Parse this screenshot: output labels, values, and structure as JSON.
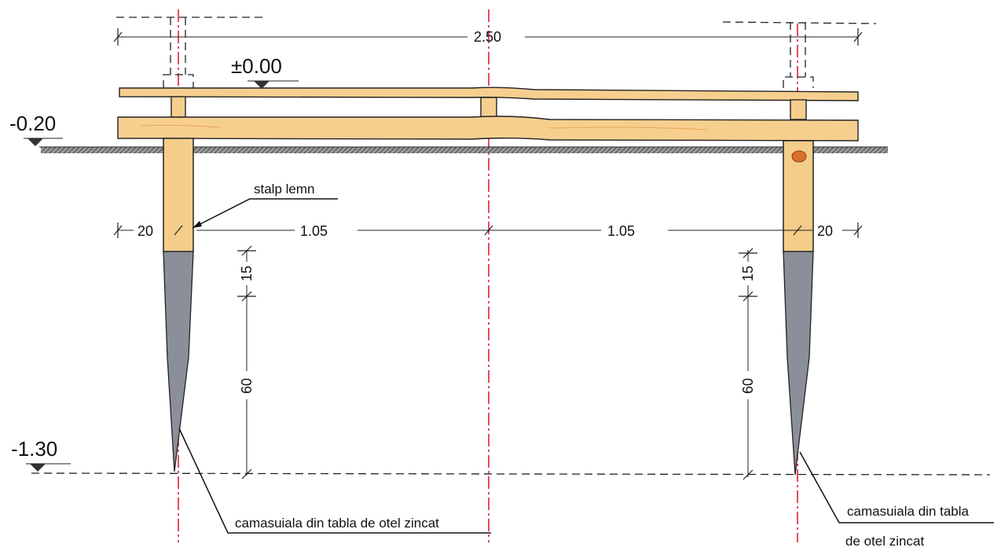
{
  "levels": {
    "top": "±0.00",
    "ground": "-0.20",
    "bottom": "-1.30"
  },
  "dimensions": {
    "overall": "2.50",
    "post_left": "20",
    "span_left": "1.05",
    "span_right": "1.05",
    "post_right": "20",
    "cap_left": "15",
    "spike_left": "60",
    "cap_right": "15",
    "spike_right": "60"
  },
  "labels": {
    "post": "stalp lemn",
    "sheath_left": "camasuiala din tabla de otel zincat",
    "sheath_right_line1": "camasuiala din tabla",
    "sheath_right_line2": "de otel zincat"
  },
  "colors": {
    "wood": "#f6cf8f",
    "steel": "#8b8f9a",
    "axis": "#e0213b"
  }
}
